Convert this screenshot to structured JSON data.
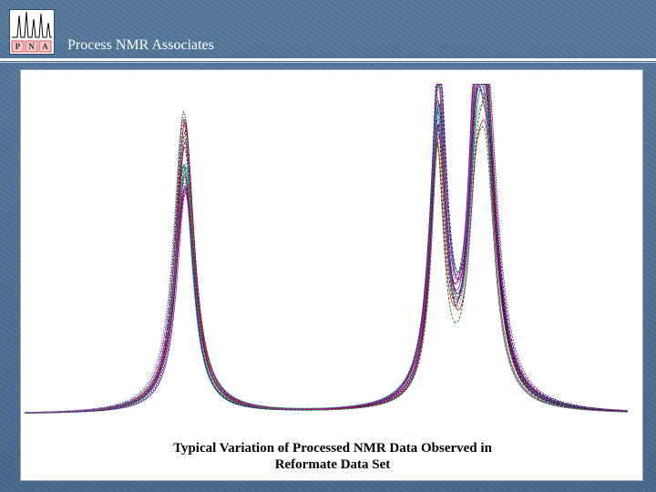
{
  "header": {
    "title": "Process NMR Associates",
    "logo_text": "PNA"
  },
  "chart_data": {
    "type": "line",
    "title": "",
    "xlabel": "",
    "ylabel": "",
    "xlim": [
      0,
      100
    ],
    "ylim": [
      0,
      1.0
    ],
    "grid": false,
    "legend": "none",
    "caption": [
      "Typical Variation of Processed NMR Data Observed in",
      "Reformate Data Set"
    ],
    "peaks_typical": [
      {
        "position": 26.5,
        "height": 0.8,
        "halfwidth": 1.8
      },
      {
        "position": 68.5,
        "height": 0.89,
        "halfwidth": 1.5
      },
      {
        "position": 76.5,
        "height": 0.8,
        "halfwidth": 2.0
      }
    ],
    "series_count": 24,
    "series_colors": [
      "#c0007a",
      "#000080",
      "#008080",
      "#2e8b57",
      "#800000",
      "#1e90ff",
      "#8b008b",
      "#006400",
      "#000000",
      "#b22222",
      "#4682b4",
      "#9932cc"
    ]
  }
}
